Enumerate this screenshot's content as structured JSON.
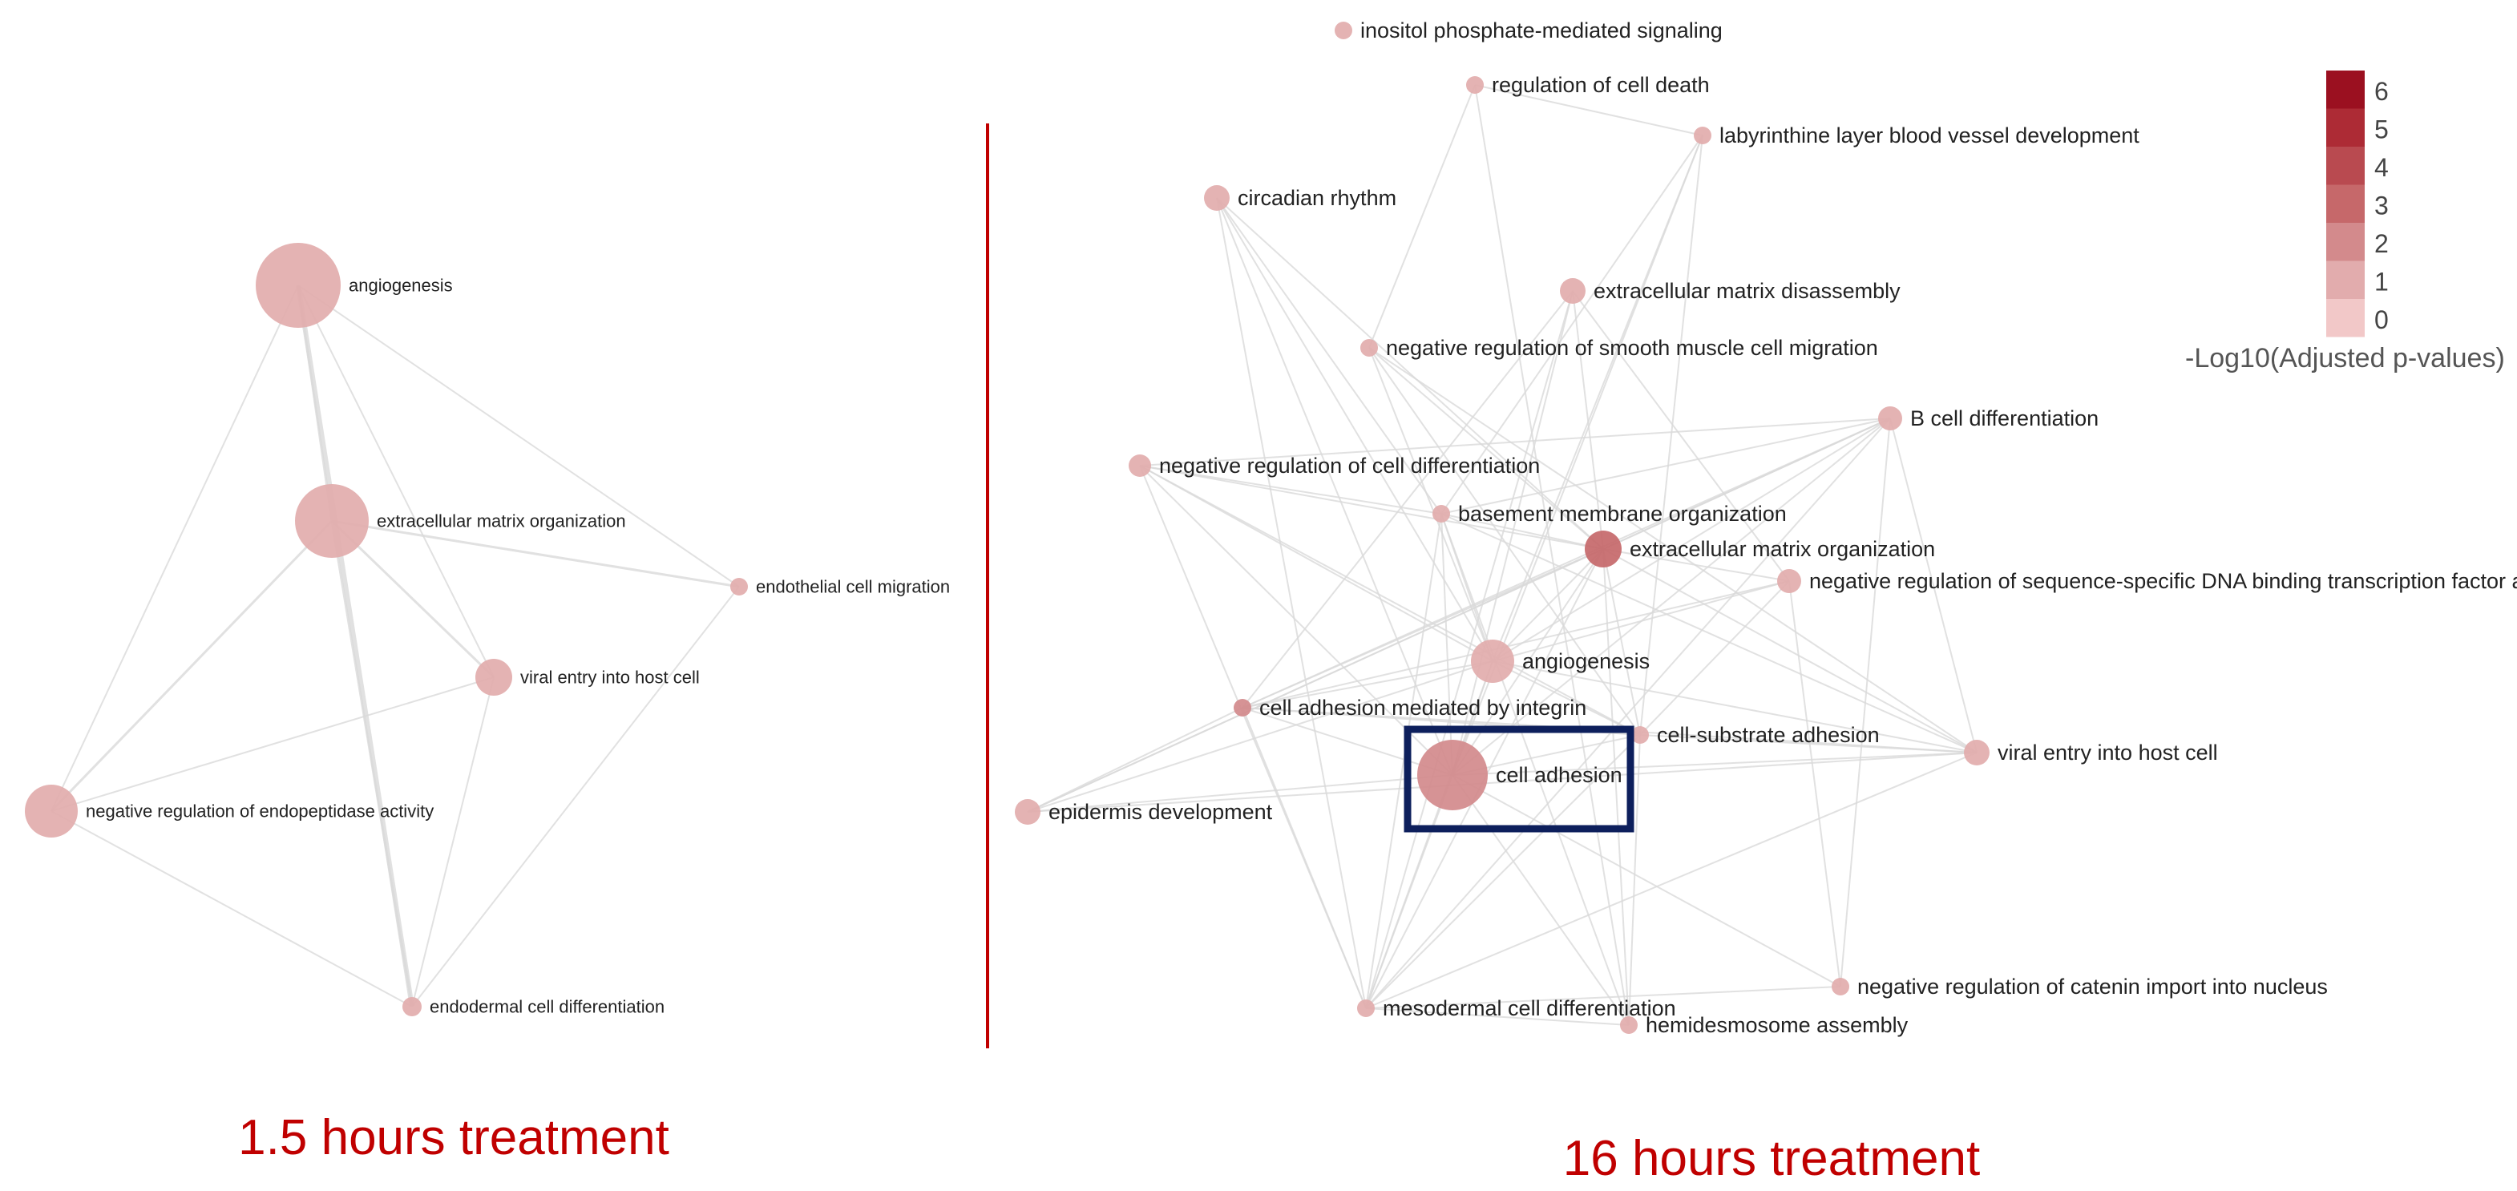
{
  "panels": [
    {
      "id": "left",
      "title": "1.5 hours treatment",
      "nodes": [
        {
          "id": "angiogenesis",
          "label": "angiogenesis",
          "value": 0.6
        },
        {
          "id": "ecm_org",
          "label": "extracellular matrix organization",
          "value": 0.6
        },
        {
          "id": "endo_mig",
          "label": "endothelial cell migration",
          "value": 0.6
        },
        {
          "id": "viral",
          "label": "viral entry into host cell",
          "value": 0.6
        },
        {
          "id": "neg_endopep",
          "label": "negative regulation of endopeptidase activity",
          "value": 0.6
        },
        {
          "id": "endoderm",
          "label": "endodermal cell differentiation",
          "value": 0.6
        }
      ],
      "edges": [
        [
          "angiogenesis",
          "ecm_org"
        ],
        [
          "angiogenesis",
          "endoderm"
        ],
        [
          "angiogenesis",
          "endo_mig"
        ],
        [
          "angiogenesis",
          "viral"
        ],
        [
          "angiogenesis",
          "neg_endopep"
        ],
        [
          "ecm_org",
          "endo_mig"
        ],
        [
          "ecm_org",
          "viral"
        ],
        [
          "ecm_org",
          "neg_endopep"
        ],
        [
          "ecm_org",
          "endoderm"
        ],
        [
          "viral",
          "endoderm"
        ],
        [
          "viral",
          "neg_endopep"
        ],
        [
          "endo_mig",
          "endoderm"
        ],
        [
          "neg_endopep",
          "endoderm"
        ]
      ]
    },
    {
      "id": "right",
      "title": "16 hours treatment",
      "nodes": [
        {
          "id": "inositol",
          "label": "inositol phosphate-mediated signaling",
          "value": 0.9
        },
        {
          "id": "reg_death",
          "label": "regulation of cell death",
          "value": 1.0
        },
        {
          "id": "labyrinth",
          "label": "labyrinthine layer blood vessel development",
          "value": 0.9
        },
        {
          "id": "circadian",
          "label": "circadian rhythm",
          "value": 0.8
        },
        {
          "id": "ecm_dis",
          "label": "extracellular matrix disassembly",
          "value": 0.9
        },
        {
          "id": "neg_smc",
          "label": "negative regulation of smooth muscle cell migration",
          "value": 0.9
        },
        {
          "id": "bcell",
          "label": "B cell differentiation",
          "value": 0.9
        },
        {
          "id": "neg_celldiff",
          "label": "negative regulation of cell differentiation",
          "value": 1.2
        },
        {
          "id": "basement",
          "label": "basement membrane organization",
          "value": 1.1
        },
        {
          "id": "ecm_org",
          "label": "extracellular matrix organization",
          "value": 2.8
        },
        {
          "id": "neg_tf",
          "label": "negative regulation of sequence-specific DNA binding transcription factor activity",
          "value": 1.0
        },
        {
          "id": "angiogenesis",
          "label": "angiogenesis",
          "value": 1.1
        },
        {
          "id": "integrin",
          "label": "cell adhesion mediated by integrin",
          "value": 2.0
        },
        {
          "id": "substrate",
          "label": "cell-substrate adhesion",
          "value": 1.0
        },
        {
          "id": "viral",
          "label": "viral entry into host cell",
          "value": 0.9
        },
        {
          "id": "cell_adhesion",
          "label": "cell adhesion",
          "value": 1.5
        },
        {
          "id": "epidermis",
          "label": "epidermis development",
          "value": 0.9
        },
        {
          "id": "catenin",
          "label": "negative regulation of catenin import into nucleus",
          "value": 1.0
        },
        {
          "id": "mesoderm",
          "label": "mesodermal cell differentiation",
          "value": 1.1
        },
        {
          "id": "hemides",
          "label": "hemidesmosome assembly",
          "value": 0.9
        }
      ],
      "edges": [
        [
          "circadian",
          "basement"
        ],
        [
          "circadian",
          "mesoderm"
        ],
        [
          "circadian",
          "cell_adhesion"
        ],
        [
          "circadian",
          "ecm_org"
        ],
        [
          "circadian",
          "angiogenesis"
        ],
        [
          "reg_death",
          "neg_smc"
        ],
        [
          "reg_death",
          "hemides"
        ],
        [
          "reg_death",
          "labyrinth"
        ],
        [
          "labyrinth",
          "cell_adhesion"
        ],
        [
          "labyrinth",
          "substrate"
        ],
        [
          "labyrinth",
          "angiogenesis"
        ],
        [
          "labyrinth",
          "basement"
        ],
        [
          "ecm_dis",
          "ecm_org"
        ],
        [
          "ecm_dis",
          "mesoderm"
        ],
        [
          "ecm_dis",
          "cell_adhesion"
        ],
        [
          "ecm_dis",
          "integrin"
        ],
        [
          "ecm_dis",
          "neg_tf"
        ],
        [
          "neg_smc",
          "angiogenesis"
        ],
        [
          "neg_smc",
          "substrate"
        ],
        [
          "neg_smc",
          "viral"
        ],
        [
          "neg_smc",
          "ecm_org"
        ],
        [
          "bcell",
          "neg_celldiff"
        ],
        [
          "bcell",
          "integrin"
        ],
        [
          "bcell",
          "basement"
        ],
        [
          "bcell",
          "viral"
        ],
        [
          "bcell",
          "cell_adhesion"
        ],
        [
          "bcell",
          "catenin"
        ],
        [
          "bcell",
          "ecm_org"
        ],
        [
          "bcell",
          "angiogenesis"
        ],
        [
          "bcell",
          "mesoderm"
        ],
        [
          "neg_celldiff",
          "ecm_org"
        ],
        [
          "neg_celldiff",
          "angiogenesis"
        ],
        [
          "neg_celldiff",
          "cell_adhesion"
        ],
        [
          "neg_celldiff",
          "mesoderm"
        ],
        [
          "neg_celldiff",
          "substrate"
        ],
        [
          "neg_celldiff",
          "basement"
        ],
        [
          "basement",
          "ecm_org"
        ],
        [
          "basement",
          "angiogenesis"
        ],
        [
          "basement",
          "hemides"
        ],
        [
          "basement",
          "mesoderm"
        ],
        [
          "basement",
          "cell_adhesion"
        ],
        [
          "basement",
          "viral"
        ],
        [
          "ecm_org",
          "angiogenesis"
        ],
        [
          "ecm_org",
          "integrin"
        ],
        [
          "ecm_org",
          "cell_adhesion"
        ],
        [
          "ecm_org",
          "substrate"
        ],
        [
          "ecm_org",
          "neg_tf"
        ],
        [
          "ecm_org",
          "viral"
        ],
        [
          "ecm_org",
          "mesoderm"
        ],
        [
          "ecm_org",
          "hemides"
        ],
        [
          "ecm_org",
          "epidermis"
        ],
        [
          "neg_tf",
          "catenin"
        ],
        [
          "neg_tf",
          "angiogenesis"
        ],
        [
          "neg_tf",
          "integrin"
        ],
        [
          "neg_tf",
          "substrate"
        ],
        [
          "angiogenesis",
          "integrin"
        ],
        [
          "angiogenesis",
          "cell_adhesion"
        ],
        [
          "angiogenesis",
          "substrate"
        ],
        [
          "angiogenesis",
          "viral"
        ],
        [
          "angiogenesis",
          "mesoderm"
        ],
        [
          "angiogenesis",
          "epidermis"
        ],
        [
          "integrin",
          "cell_adhesion"
        ],
        [
          "integrin",
          "mesoderm"
        ],
        [
          "integrin",
          "epidermis"
        ],
        [
          "integrin",
          "substrate"
        ],
        [
          "integrin",
          "viral"
        ],
        [
          "cell_adhesion",
          "substrate"
        ],
        [
          "cell_adhesion",
          "viral"
        ],
        [
          "cell_adhesion",
          "mesoderm"
        ],
        [
          "cell_adhesion",
          "hemides"
        ],
        [
          "cell_adhesion",
          "epidermis"
        ],
        [
          "cell_adhesion",
          "catenin"
        ],
        [
          "substrate",
          "mesoderm"
        ],
        [
          "substrate",
          "hemides"
        ],
        [
          "substrate",
          "viral"
        ],
        [
          "viral",
          "mesoderm"
        ],
        [
          "epidermis",
          "viral"
        ],
        [
          "epidermis",
          "bcell"
        ],
        [
          "mesoderm",
          "catenin"
        ],
        [
          "mesoderm",
          "hemides"
        ]
      ]
    }
  ],
  "highlight": {
    "panel": "right",
    "node": "cell_adhesion"
  },
  "legend": {
    "title": "-Log10(Adjusted p-values)",
    "ticks": [
      "6",
      "5",
      "4",
      "3",
      "2",
      "1",
      "0"
    ],
    "colors": [
      "#9b1020",
      "#ad2b35",
      "#b94a50",
      "#c6686a",
      "#d38a8c",
      "#e2acad",
      "#f2c8c8"
    ]
  },
  "colors": {
    "edge": "#d9d9d9",
    "title": "#c00000",
    "divider": "#c00000",
    "highlight_box": "#0d1f5c"
  }
}
